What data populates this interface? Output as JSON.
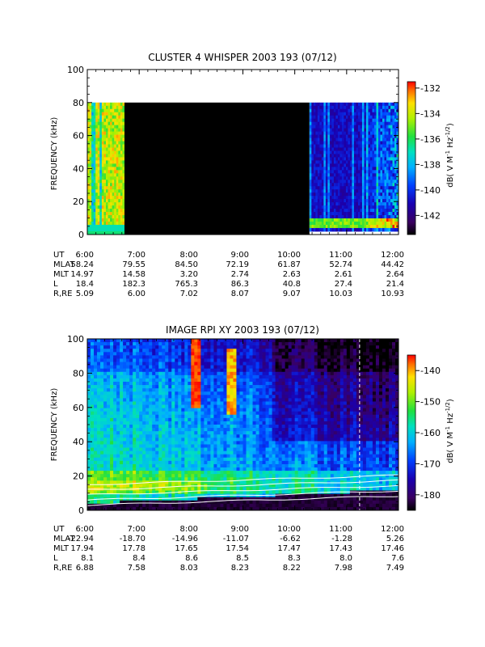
{
  "chart_data": [
    {
      "type": "heatmap",
      "title": "CLUSTER 4 WHISPER 2003 193 (07/12)",
      "ylabel": "FREQUENCY (kHz)",
      "ylim": [
        0,
        100
      ],
      "yticks": [
        "0",
        "20",
        "40",
        "60",
        "80",
        "100"
      ],
      "colorbar": {
        "range": [
          -143.5,
          -131.5
        ],
        "ticks": [
          "-132",
          "-134",
          "-136",
          "-138",
          "-140",
          "-142"
        ],
        "label": "dB( V M-1 Hz-1/2)"
      },
      "data_extent_khz": [
        2,
        80
      ],
      "segments": [
        {
          "from": "6:00",
          "to": "6:43",
          "state": "data",
          "level": "high"
        },
        {
          "from": "6:43",
          "to": "10:17",
          "state": "no data (black)"
        },
        {
          "from": "10:17",
          "to": "12:00",
          "state": "data",
          "level": "low"
        }
      ],
      "ephemeris": {
        "rows": [
          {
            "label": "UT",
            "values": [
              "6:00",
              "7:00",
              "8:00",
              "9:00",
              "10:00",
              "11:00",
              "12:00"
            ]
          },
          {
            "label": "MLAT",
            "values": [
              "58.24",
              "79.55",
              "84.50",
              "72.19",
              "61.87",
              "52.74",
              "44.42"
            ]
          },
          {
            "label": "MLT",
            "values": [
              "14.97",
              "14.58",
              "3.20",
              "2.74",
              "2.63",
              "2.61",
              "2.64"
            ]
          },
          {
            "label": "L",
            "values": [
              "18.4",
              "182.3",
              "765.3",
              "86.3",
              "40.8",
              "27.4",
              "21.4"
            ]
          },
          {
            "label": "R,RE",
            "values": [
              "5.09",
              "6.00",
              "7.02",
              "8.07",
              "9.07",
              "10.03",
              "10.93"
            ]
          }
        ]
      }
    },
    {
      "type": "heatmap",
      "title": "IMAGE RPI XY 2003 193 (07/12)",
      "ylabel": "FREQUENCY (kHz)",
      "ylim": [
        0,
        100
      ],
      "yticks": [
        "0",
        "20",
        "40",
        "60",
        "80",
        "100"
      ],
      "colorbar": {
        "range": [
          -185,
          -135
        ],
        "ticks": [
          "-140",
          "-150",
          "-160",
          "-170",
          "-180"
        ],
        "label": "dB( V M-1 Hz-1/2)"
      },
      "ephemeris": {
        "rows": [
          {
            "label": "UT",
            "values": [
              "6:00",
              "7:00",
              "8:00",
              "9:00",
              "10:00",
              "11:00",
              "12:00"
            ]
          },
          {
            "label": "MLAT",
            "values": [
              "-22.94",
              "-18.70",
              "-14.96",
              "-11.07",
              "-6.62",
              "-1.28",
              "5.26"
            ]
          },
          {
            "label": "MLT",
            "values": [
              "17.94",
              "17.78",
              "17.65",
              "17.54",
              "17.47",
              "17.43",
              "17.46"
            ]
          },
          {
            "label": "L",
            "values": [
              "8.1",
              "8.4",
              "8.6",
              "8.5",
              "8.3",
              "8.0",
              "7.6"
            ]
          },
          {
            "label": "R,RE",
            "values": [
              "6.88",
              "7.58",
              "8.03",
              "8.23",
              "8.22",
              "7.98",
              "7.49"
            ]
          }
        ]
      }
    }
  ]
}
